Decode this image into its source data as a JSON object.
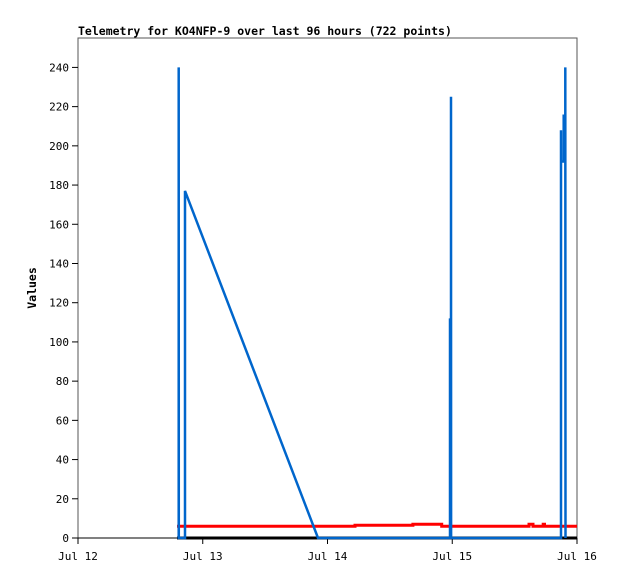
{
  "chart_data": {
    "type": "line",
    "title": "Telemetry for KO4NFP-9 over last 96 hours (722 points)",
    "xlabel": "",
    "ylabel": "Values",
    "xlim": [
      "07-12 00:00",
      "07-16 00:00"
    ],
    "ylim": [
      0,
      255
    ],
    "x_ticks": [
      {
        "t": "07-12 00:00",
        "label": "Jul 12"
      },
      {
        "t": "07-13 00:00",
        "label": "Jul 13"
      },
      {
        "t": "07-14 00:00",
        "label": "Jul 14"
      },
      {
        "t": "07-15 00:00",
        "label": "Jul 15"
      },
      {
        "t": "07-16 00:00",
        "label": "Jul 16"
      }
    ],
    "y_ticks": [
      0,
      20,
      40,
      60,
      80,
      100,
      120,
      140,
      160,
      180,
      200,
      220,
      240
    ],
    "grid": false,
    "legend": "none",
    "series": [
      {
        "color": "#000000",
        "points": [
          [
            "07-12 19:03",
            0
          ],
          [
            "07-16 00:00",
            0
          ]
        ]
      },
      {
        "color": "#ff0000",
        "points": [
          [
            "07-12 19:03",
            6
          ],
          [
            "07-14 05:17",
            6
          ],
          [
            "07-14 05:17",
            6.5
          ],
          [
            "07-14 16:26",
            6.5
          ],
          [
            "07-14 16:26",
            7
          ],
          [
            "07-14 21:58",
            7
          ],
          [
            "07-14 21:58",
            6
          ],
          [
            "07-15 14:46",
            6
          ],
          [
            "07-15 14:46",
            7
          ],
          [
            "07-15 15:32",
            7
          ],
          [
            "07-15 15:32",
            6
          ],
          [
            "07-15 17:30",
            6
          ],
          [
            "07-15 17:30",
            7
          ],
          [
            "07-15 17:45",
            7
          ],
          [
            "07-15 17:45",
            6
          ],
          [
            "07-16 00:00",
            6
          ]
        ]
      },
      {
        "color": "#0066cc",
        "points": [
          [
            "07-12 19:22",
            0
          ],
          [
            "07-12 19:22",
            240
          ],
          [
            "07-12 19:23",
            0
          ],
          [
            "07-12 20:35",
            0
          ],
          [
            "07-12 20:35",
            177
          ],
          [
            "07-13 22:10",
            0
          ],
          [
            "07-14 23:34",
            0
          ],
          [
            "07-14 23:34",
            112
          ],
          [
            "07-14 23:36",
            0
          ],
          [
            "07-14 23:46",
            0
          ],
          [
            "07-14 23:46",
            225
          ],
          [
            "07-14 23:47",
            0
          ],
          [
            "07-15 20:55",
            0
          ],
          [
            "07-15 20:55",
            208
          ],
          [
            "07-15 20:56",
            192
          ],
          [
            "07-15 21:26",
            192
          ],
          [
            "07-15 21:26",
            216
          ],
          [
            "07-15 21:30",
            192
          ],
          [
            "07-15 21:45",
            192
          ],
          [
            "07-15 21:45",
            240
          ],
          [
            "07-15 21:47",
            0
          ]
        ]
      }
    ]
  }
}
